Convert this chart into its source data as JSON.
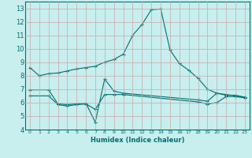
{
  "xlabel": "Humidex (Indice chaleur)",
  "ylabel": "",
  "xlim": [
    -0.5,
    23.5
  ],
  "ylim": [
    4,
    13.5
  ],
  "yticks": [
    4,
    5,
    6,
    7,
    8,
    9,
    10,
    11,
    12,
    13
  ],
  "xticks": [
    0,
    1,
    2,
    3,
    4,
    5,
    6,
    7,
    8,
    9,
    10,
    11,
    12,
    13,
    14,
    15,
    16,
    17,
    18,
    19,
    20,
    21,
    22,
    23
  ],
  "background_color": "#c8eeee",
  "grid_color": "#c8a8a8",
  "line_color": "#007070",
  "lines": [
    {
      "x": [
        0,
        1,
        2,
        3,
        4,
        5,
        6,
        7,
        8,
        9,
        10,
        11,
        12,
        13,
        14,
        15,
        16,
        17,
        18,
        19,
        20,
        21,
        22,
        23
      ],
      "y": [
        8.6,
        8.0,
        8.15,
        8.2,
        8.35,
        8.5,
        8.6,
        8.7,
        9.0,
        9.2,
        9.6,
        11.0,
        11.8,
        12.9,
        12.95,
        9.9,
        8.9,
        8.4,
        7.8,
        7.0,
        6.7,
        6.6,
        6.5,
        6.4
      ]
    },
    {
      "x": [
        0,
        2,
        3,
        4,
        5,
        6,
        7,
        8,
        9,
        10,
        18,
        19,
        20,
        21,
        22,
        23
      ],
      "y": [
        6.95,
        6.95,
        5.9,
        5.85,
        5.9,
        5.95,
        4.55,
        7.75,
        6.85,
        6.7,
        6.2,
        6.1,
        6.7,
        6.55,
        6.55,
        6.4
      ]
    },
    {
      "x": [
        0,
        2,
        3,
        4,
        5,
        6,
        7,
        8,
        9,
        10,
        18,
        19,
        20,
        21,
        22,
        23
      ],
      "y": [
        6.5,
        6.5,
        5.85,
        5.75,
        5.85,
        5.9,
        5.5,
        6.6,
        6.6,
        6.6,
        6.05,
        5.9,
        6.0,
        6.45,
        6.45,
        6.35
      ]
    }
  ]
}
